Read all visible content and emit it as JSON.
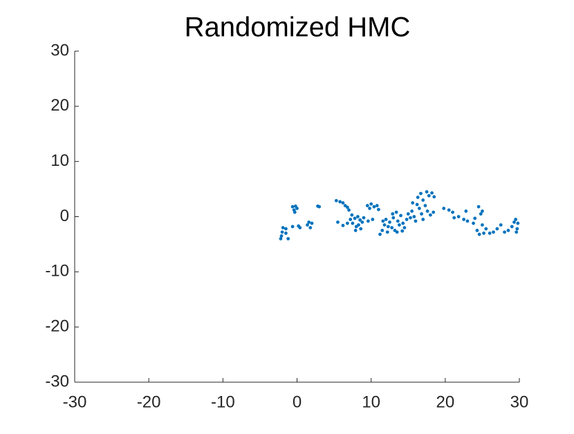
{
  "chart_data": {
    "type": "scatter",
    "title": "Randomized HMC",
    "color": "#0072bd",
    "xlim": [
      -30,
      30
    ],
    "ylim": [
      -30,
      30
    ],
    "xticks": [
      -30,
      -20,
      -10,
      0,
      10,
      20,
      30
    ],
    "yticks": [
      -30,
      -20,
      -10,
      0,
      10,
      20,
      30
    ],
    "x": [
      -2.2,
      -2.1,
      -2.0,
      -1.9,
      -1.5,
      -1.2,
      -1.5,
      -0.6,
      -0.4,
      -0.2,
      0,
      -0.3,
      -0.6,
      0.2,
      0.4,
      1.4,
      1.6,
      1.8,
      2.0,
      2.8,
      3.0,
      5.3,
      5.8,
      6.2,
      6.5,
      6.8,
      7.0,
      5.5,
      6.2,
      6.8,
      7.2,
      7.5,
      7.8,
      8.0,
      8.2,
      8.5,
      8.8,
      7.9,
      8.6,
      9.0,
      7.4,
      8.3,
      9.5,
      9.8,
      10.0,
      10.4,
      10.8,
      11.0,
      9.6,
      10.2,
      11.2,
      11.5,
      11.8,
      12.0,
      12.2,
      12.5,
      12.8,
      13.0,
      11.6,
      12.3,
      13.2,
      12.9,
      13.4,
      13.6,
      13.8,
      14.0,
      14.3,
      14.5,
      14.8,
      15.0,
      13.5,
      14.2,
      15.3,
      15.5,
      15.8,
      16.0,
      16.2,
      16.5,
      16.8,
      17.0,
      16.3,
      16.7,
      17.0,
      15.6,
      17.5,
      17.8,
      18.2,
      18.5,
      17.6,
      18.0,
      18.4,
      17.3,
      19.8,
      20.5,
      21.0,
      21.2,
      21.8,
      22.5,
      23.0,
      23.8,
      22.8,
      24.0,
      24.5,
      24.8,
      25.0,
      24.6,
      25.2,
      25.5,
      25.0,
      24.3,
      26.0,
      26.5,
      27.0,
      27.5,
      28.0,
      28.5,
      29.0,
      29.3,
      29.5,
      29.7,
      29.8,
      29.6
    ],
    "y": [
      -4.0,
      -3.5,
      -2.8,
      -2.0,
      -3.0,
      -4.0,
      -2.2,
      1.8,
      1.2,
      1.9,
      1.5,
      0.8,
      -1.8,
      -1.7,
      -2.0,
      -1.5,
      -1.0,
      -2.0,
      -1.2,
      1.9,
      1.8,
      2.9,
      2.7,
      2.5,
      2.0,
      1.7,
      1.2,
      -1.0,
      -1.6,
      -1.2,
      -0.5,
      -1.2,
      -0.3,
      -1.8,
      0.0,
      -0.6,
      -1.0,
      -2.5,
      -2.2,
      -0.2,
      0.3,
      -1.5,
      2.0,
      1.5,
      2.3,
      1.8,
      2.0,
      1.3,
      -0.8,
      -0.5,
      -3.2,
      -2.5,
      -1.5,
      -0.5,
      -2.8,
      -1.0,
      -2.0,
      -0.2,
      -0.8,
      -1.8,
      -2.5,
      0.5,
      0.8,
      -0.8,
      -1.5,
      0.2,
      -1.2,
      -2.0,
      -0.5,
      0.5,
      -2.8,
      -2.6,
      -0.2,
      1.0,
      0.0,
      -0.8,
      2.2,
      1.5,
      0.5,
      -0.5,
      3.5,
      4.2,
      3.0,
      2.5,
      4.5,
      3.8,
      4.3,
      3.6,
      1.0,
      0.3,
      0.8,
      2.0,
      1.5,
      1.2,
      0.8,
      -0.2,
      0.0,
      -0.5,
      -0.8,
      -1.2,
      1.0,
      -0.3,
      1.8,
      0.5,
      -1.5,
      -3.2,
      -3.0,
      -2.2,
      1.0,
      -2.5,
      -3.0,
      -2.8,
      -2.2,
      -1.5,
      -2.8,
      -2.5,
      -1.8,
      -1.0,
      -0.5,
      -2.2,
      -1.2,
      -2.8
    ]
  }
}
